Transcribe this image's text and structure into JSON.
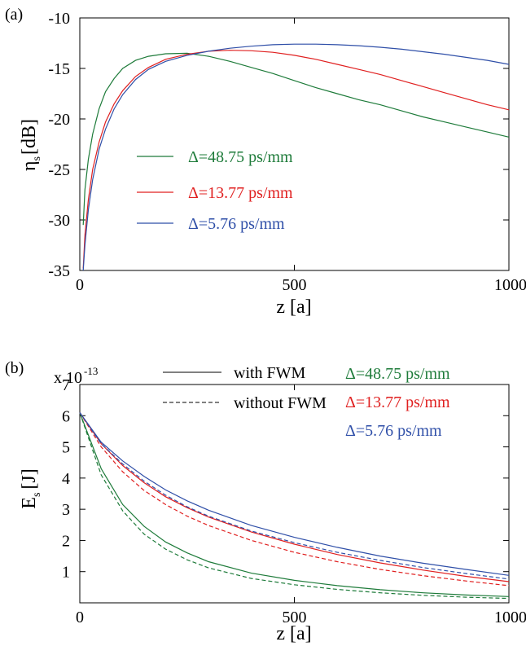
{
  "chart_data": [
    {
      "type": "line",
      "panel_label": "(a)",
      "xlabel": "z [a]",
      "ylabel_main": "η",
      "ylabel_sub": "s",
      "ylabel_unit": "[dB]",
      "xlim": [
        0,
        1000
      ],
      "ylim": [
        -35,
        -10
      ],
      "xticks": [
        0,
        500,
        1000
      ],
      "yticks": [
        -10,
        -15,
        -20,
        -25,
        -30,
        -35
      ],
      "grid": false,
      "legend_position": "left-center",
      "colors": {
        "green": "#1e7b3a",
        "red": "#e02020",
        "blue": "#2f4fa8"
      },
      "series": [
        {
          "name": "Δ=48.75 ps/mm",
          "color": "#1e7b3a",
          "x": [
            8,
            12,
            20,
            30,
            45,
            60,
            80,
            100,
            130,
            160,
            200,
            250,
            300,
            350,
            400,
            450,
            500,
            550,
            600,
            650,
            700,
            750,
            800,
            850,
            900,
            950,
            1000
          ],
          "y": [
            -30.5,
            -27.0,
            -24.0,
            -21.5,
            -19.0,
            -17.3,
            -16.0,
            -15.0,
            -14.2,
            -13.8,
            -13.55,
            -13.5,
            -13.8,
            -14.3,
            -14.9,
            -15.5,
            -16.2,
            -16.9,
            -17.5,
            -18.1,
            -18.6,
            -19.2,
            -19.8,
            -20.3,
            -20.8,
            -21.3,
            -21.8
          ]
        },
        {
          "name": "Δ=13.77 ps/mm",
          "color": "#e02020",
          "x": [
            8,
            12,
            20,
            30,
            45,
            60,
            80,
            100,
            130,
            160,
            200,
            250,
            300,
            350,
            400,
            450,
            500,
            550,
            600,
            650,
            700,
            750,
            800,
            850,
            900,
            950,
            1000
          ],
          "y": [
            -34.8,
            -31.5,
            -28.0,
            -25.0,
            -22.3,
            -20.3,
            -18.5,
            -17.2,
            -15.8,
            -14.9,
            -14.1,
            -13.6,
            -13.3,
            -13.2,
            -13.25,
            -13.4,
            -13.7,
            -14.1,
            -14.6,
            -15.1,
            -15.6,
            -16.2,
            -16.8,
            -17.4,
            -18.0,
            -18.6,
            -19.1
          ]
        },
        {
          "name": "Δ=5.76 ps/mm",
          "color": "#2f4fa8",
          "x": [
            8,
            12,
            20,
            30,
            45,
            60,
            80,
            100,
            130,
            160,
            200,
            250,
            300,
            350,
            400,
            450,
            500,
            550,
            600,
            650,
            700,
            750,
            800,
            850,
            900,
            950,
            1000
          ],
          "y": [
            -35,
            -32.5,
            -29.0,
            -26.0,
            -23.0,
            -21.0,
            -19.0,
            -17.6,
            -16.1,
            -15.1,
            -14.3,
            -13.7,
            -13.3,
            -13.0,
            -12.8,
            -12.65,
            -12.6,
            -12.6,
            -12.65,
            -12.75,
            -12.9,
            -13.1,
            -13.35,
            -13.6,
            -13.9,
            -14.2,
            -14.6
          ]
        }
      ]
    },
    {
      "type": "line",
      "panel_label": "(b)",
      "xlabel": "z [a]",
      "ylabel_main": "E",
      "ylabel_sub": "s",
      "ylabel_unit": "[J]",
      "y_scale_prefix": "x 10",
      "y_scale_exponent": "-13",
      "xlim": [
        0,
        1000
      ],
      "ylim": [
        0,
        7
      ],
      "xticks": [
        0,
        500,
        1000
      ],
      "yticks": [
        1,
        2,
        3,
        4,
        5,
        6,
        7
      ],
      "grid": false,
      "legend_position": "top",
      "legend_styles": [
        {
          "label": "with FWM",
          "dash": "solid"
        },
        {
          "label": "without FWM",
          "dash": "dashed"
        }
      ],
      "legend_colors": [
        {
          "label": "Δ=48.75 ps/mm",
          "color": "#1e7b3a"
        },
        {
          "label": "Δ=13.77 ps/mm",
          "color": "#e02020"
        },
        {
          "label": "Δ=5.76 ps/mm",
          "color": "#2f4fa8"
        }
      ],
      "series": [
        {
          "name": "Δ=48.75 ps/mm, with FWM",
          "color": "#1e7b3a",
          "dash": "solid",
          "x": [
            0,
            50,
            100,
            150,
            200,
            250,
            300,
            400,
            500,
            600,
            700,
            800,
            900,
            1000
          ],
          "y": [
            6.1,
            4.3,
            3.15,
            2.45,
            1.95,
            1.6,
            1.32,
            0.95,
            0.72,
            0.55,
            0.42,
            0.32,
            0.25,
            0.2
          ]
        },
        {
          "name": "Δ=48.75 ps/mm, without FWM",
          "color": "#1e7b3a",
          "dash": "dashed",
          "x": [
            0,
            50,
            100,
            150,
            200,
            250,
            300,
            400,
            500,
            600,
            700,
            800,
            900,
            1000
          ],
          "y": [
            6.1,
            4.1,
            2.95,
            2.2,
            1.72,
            1.38,
            1.12,
            0.78,
            0.58,
            0.43,
            0.32,
            0.24,
            0.18,
            0.14
          ]
        },
        {
          "name": "Δ=13.77 ps/mm, with FWM",
          "color": "#e02020",
          "dash": "solid",
          "x": [
            0,
            50,
            100,
            150,
            200,
            250,
            300,
            400,
            500,
            600,
            700,
            800,
            900,
            1000
          ],
          "y": [
            6.1,
            5.1,
            4.4,
            3.85,
            3.4,
            3.05,
            2.75,
            2.27,
            1.88,
            1.55,
            1.28,
            1.05,
            0.85,
            0.68
          ]
        },
        {
          "name": "Δ=13.77 ps/mm, without FWM",
          "color": "#e02020",
          "dash": "dashed",
          "x": [
            0,
            50,
            100,
            150,
            200,
            250,
            300,
            400,
            500,
            600,
            700,
            800,
            900,
            1000
          ],
          "y": [
            6.1,
            5.0,
            4.2,
            3.6,
            3.15,
            2.78,
            2.48,
            2.0,
            1.62,
            1.32,
            1.07,
            0.87,
            0.7,
            0.55
          ]
        },
        {
          "name": "Δ=5.76 ps/mm, with FWM",
          "color": "#2f4fa8",
          "dash": "solid",
          "x": [
            0,
            50,
            100,
            150,
            200,
            250,
            300,
            400,
            500,
            600,
            700,
            800,
            900,
            1000
          ],
          "y": [
            6.1,
            5.15,
            4.55,
            4.05,
            3.62,
            3.27,
            2.97,
            2.48,
            2.1,
            1.78,
            1.5,
            1.27,
            1.07,
            0.88
          ]
        },
        {
          "name": "Δ=5.76 ps/mm, without FWM",
          "color": "#2f4fa8",
          "dash": "dashed",
          "x": [
            0,
            50,
            100,
            150,
            200,
            250,
            300,
            400,
            500,
            600,
            700,
            800,
            900,
            1000
          ],
          "y": [
            6.1,
            5.1,
            4.45,
            3.9,
            3.45,
            3.08,
            2.78,
            2.3,
            1.93,
            1.62,
            1.36,
            1.13,
            0.94,
            0.76
          ]
        }
      ]
    }
  ]
}
